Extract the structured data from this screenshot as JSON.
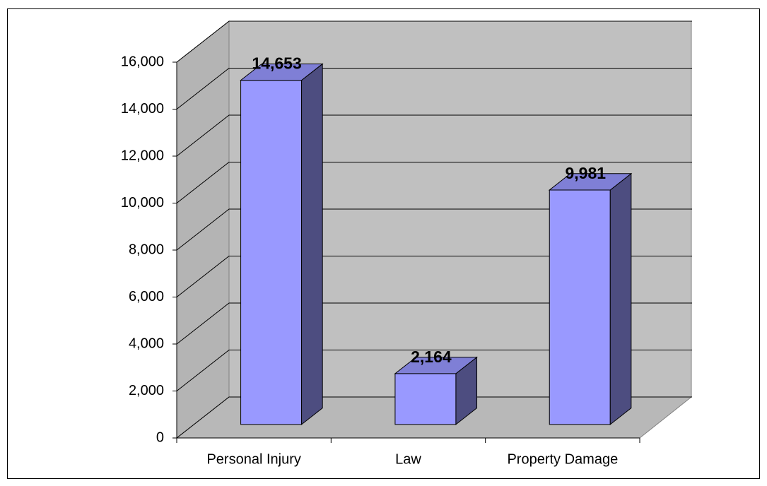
{
  "chart_data": {
    "type": "bar",
    "categories": [
      "Personal Injury",
      "Law",
      "Property Damage"
    ],
    "values": [
      14653,
      2164,
      9981
    ],
    "value_labels": [
      "14,653",
      "2,164",
      "9,981"
    ],
    "color": "#9999ff",
    "side_color": "#4d4d80",
    "top_color": "#7f7fd6",
    "ylim": [
      0,
      16000
    ],
    "yticks": [
      0,
      {
        "value": 2000,
        "label": "2,000"
      },
      {
        "value": 4000,
        "label": "4,000"
      },
      {
        "value": 6000,
        "label": "6,000"
      },
      {
        "value": 8000,
        "label": "8,000"
      },
      {
        "value": 10000,
        "label": "10,000"
      },
      {
        "value": 12000,
        "label": "12,000"
      },
      {
        "value": 14000,
        "label": "14,000"
      },
      {
        "value": 16000,
        "label": "16,000"
      }
    ],
    "grid": true
  }
}
